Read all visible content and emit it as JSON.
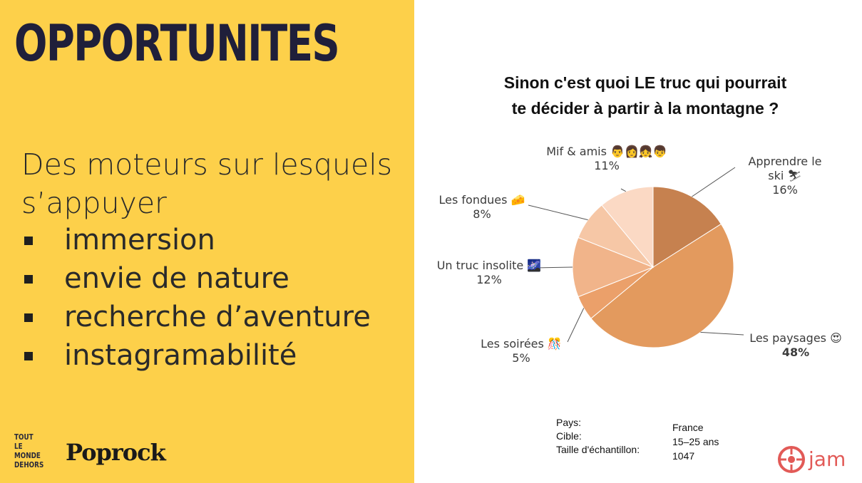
{
  "slide": {
    "title": "OPPORTUNITES",
    "subtitle_lines": [
      "Des moteurs sur lesquels",
      "s’appuyer"
    ],
    "bullets": [
      "immersion",
      "envie de nature",
      "recherche d’aventure",
      "instagramabilité"
    ]
  },
  "logos": {
    "tmd_lines": [
      "TOUT",
      "LE MONDE",
      "DEHORS"
    ],
    "poprock": "Poprock",
    "jam": "jam"
  },
  "question": [
    "Sinon c'est quoi LE truc  qui pourrait",
    "te décider à partir à la montagne ?"
  ],
  "meta": {
    "labels": [
      "Pays:",
      "Cible:",
      "Taille d'échantillon:"
    ],
    "values": [
      "France",
      "15–25 ans",
      "1047"
    ]
  },
  "chart_data": {
    "type": "pie",
    "title": "Sinon c'est quoi LE truc  qui pourrait te décider à partir à la montagne ?",
    "slices": [
      {
        "label": "Apprendre le ski",
        "label_lines": [
          "Apprendre le",
          "ski"
        ],
        "emoji": "⛷",
        "value": 16,
        "value_label": "16%",
        "color": "#c6814f"
      },
      {
        "label": "Les paysages",
        "label_lines": [
          "Les paysages"
        ],
        "emoji": "😍",
        "value": 48,
        "value_label": "48%",
        "color": "#e39a5e"
      },
      {
        "label": "Les soirées",
        "label_lines": [
          "Les soirées"
        ],
        "emoji": "🎊",
        "value": 5,
        "value_label": "5%",
        "color": "#eba06a"
      },
      {
        "label": "Un truc insolite",
        "label_lines": [
          "Un truc insolite"
        ],
        "emoji": "🌌",
        "value": 12,
        "value_label": "12%",
        "color": "#f1b48a"
      },
      {
        "label": "Les fondues",
        "label_lines": [
          "Les fondues"
        ],
        "emoji": "🧀",
        "value": 8,
        "value_label": "8%",
        "color": "#f6c7a6"
      },
      {
        "label": "Mif & amis",
        "label_lines": [
          "Mif & amis"
        ],
        "emoji": "👨👩👧👦",
        "value": 11,
        "value_label": "11%",
        "color": "#fbd9c4"
      }
    ]
  }
}
